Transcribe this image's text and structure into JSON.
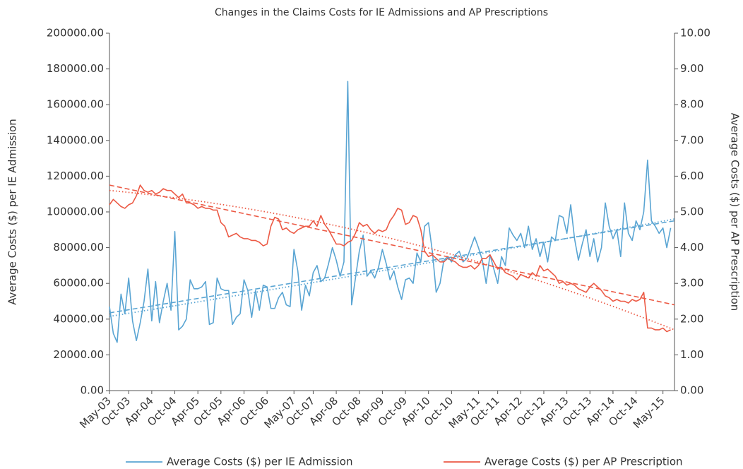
{
  "chart_data": {
    "type": "line",
    "title": "Changes in the Claims Costs for IE Admissions and AP Prescriptions",
    "ylabel": "Average Costs ($) per IE Admission",
    "y2label": "Average Costs ($) per AP Prescription",
    "categories": [
      "May-03",
      null,
      null,
      null,
      null,
      "Oct-03",
      null,
      null,
      null,
      null,
      null,
      "Apr-04",
      null,
      null,
      null,
      null,
      null,
      "Oct-04",
      null,
      null,
      null,
      null,
      null,
      "Apr-05",
      null,
      null,
      null,
      null,
      null,
      "Oct-05",
      null,
      null,
      null,
      null,
      null,
      "Apr-06",
      null,
      null,
      null,
      null,
      null,
      "Oct-06",
      null,
      null,
      null,
      null,
      null,
      null,
      "May-07",
      null,
      null,
      null,
      null,
      "Oct-07",
      null,
      null,
      null,
      null,
      null,
      "Apr-08",
      null,
      null,
      null,
      null,
      null,
      "Oct-08",
      null,
      null,
      null,
      null,
      null,
      "Apr-09",
      null,
      null,
      null,
      null,
      null,
      "Oct-09",
      null,
      null,
      null,
      null,
      null,
      "Apr-10",
      null,
      null,
      null,
      null,
      null,
      "Oct-10",
      null,
      null,
      null,
      null,
      null,
      null,
      "May-11",
      null,
      null,
      null,
      null,
      "Oct-11",
      null,
      null,
      null,
      null,
      null,
      "Apr-12",
      null,
      null,
      null,
      null,
      null,
      "Oct-12",
      null,
      null,
      null,
      null,
      null,
      "Apr-13",
      null,
      null,
      null,
      null,
      null,
      "Oct-13",
      null,
      null,
      null,
      null,
      null,
      "Apr-14",
      null,
      null,
      null,
      null,
      null,
      "Oct-14",
      null,
      null,
      null,
      null,
      null,
      null,
      "May-15",
      null,
      null
    ],
    "series": [
      {
        "name": "Average Costs ($) per IE Admission",
        "color": "#5aa5d3",
        "axis": "y",
        "values": [
          47000,
          32000,
          27000,
          54000,
          43000,
          63000,
          39000,
          28000,
          38000,
          50000,
          68000,
          39000,
          61000,
          38000,
          50000,
          60000,
          45000,
          89000,
          34000,
          36000,
          40000,
          62000,
          57000,
          57000,
          58000,
          61000,
          37000,
          38000,
          63000,
          57000,
          56000,
          56000,
          37000,
          41000,
          43000,
          62000,
          56000,
          41000,
          56000,
          45000,
          59000,
          58000,
          46000,
          46000,
          52000,
          55000,
          48000,
          47000,
          79000,
          67000,
          45000,
          59000,
          53000,
          66000,
          70000,
          61000,
          63000,
          71000,
          80000,
          73000,
          64000,
          72000,
          173000,
          48000,
          63000,
          78000,
          87000,
          64000,
          67000,
          63000,
          69000,
          79000,
          71000,
          62000,
          67000,
          58000,
          51000,
          62000,
          63000,
          60000,
          77000,
          72000,
          92000,
          94000,
          78000,
          55000,
          60000,
          73000,
          75000,
          72000,
          76000,
          78000,
          72000,
          74000,
          80000,
          86000,
          80000,
          73000,
          60000,
          76000,
          68000,
          60000,
          75000,
          70000,
          91000,
          87000,
          84000,
          88000,
          80000,
          92000,
          79000,
          85000,
          75000,
          83000,
          72000,
          86000,
          84000,
          98000,
          97000,
          88000,
          104000,
          85000,
          73000,
          82000,
          90000,
          75000,
          85000,
          72000,
          80000,
          105000,
          92000,
          85000,
          90000,
          75000,
          105000,
          88000,
          84000,
          95000,
          90000,
          100000,
          129000,
          95000,
          92000,
          88000,
          91000,
          80000,
          91000
        ]
      },
      {
        "name": "Average Costs ($) per AP Prescription",
        "color": "#ec5a45",
        "axis": "y2",
        "values": [
          5.2,
          5.35,
          5.25,
          5.15,
          5.1,
          5.2,
          5.25,
          5.45,
          5.75,
          5.6,
          5.55,
          5.6,
          5.5,
          5.55,
          5.65,
          5.6,
          5.6,
          5.5,
          5.4,
          5.5,
          5.25,
          5.25,
          5.2,
          5.1,
          5.15,
          5.1,
          5.1,
          5.05,
          5.05,
          4.7,
          4.6,
          4.3,
          4.35,
          4.4,
          4.3,
          4.25,
          4.25,
          4.2,
          4.2,
          4.15,
          4.05,
          4.1,
          4.6,
          4.85,
          4.8,
          4.5,
          4.55,
          4.45,
          4.4,
          4.5,
          4.55,
          4.6,
          4.6,
          4.75,
          4.6,
          4.9,
          4.65,
          4.5,
          4.3,
          4.1,
          4.1,
          4.05,
          4.15,
          4.2,
          4.4,
          4.7,
          4.6,
          4.65,
          4.5,
          4.4,
          4.5,
          4.45,
          4.5,
          4.75,
          4.9,
          5.1,
          5.05,
          4.65,
          4.7,
          4.9,
          4.85,
          4.5,
          3.9,
          3.75,
          3.8,
          3.7,
          3.6,
          3.6,
          3.7,
          3.65,
          3.6,
          3.5,
          3.45,
          3.45,
          3.5,
          3.4,
          3.5,
          3.7,
          3.7,
          3.8,
          3.6,
          3.4,
          3.45,
          3.3,
          3.25,
          3.2,
          3.1,
          3.25,
          3.2,
          3.15,
          3.3,
          3.2,
          3.5,
          3.35,
          3.4,
          3.3,
          3.2,
          3.0,
          3.05,
          2.95,
          3.0,
          2.95,
          2.85,
          2.8,
          2.75,
          2.9,
          3.0,
          2.9,
          2.8,
          2.65,
          2.6,
          2.5,
          2.55,
          2.5,
          2.5,
          2.45,
          2.55,
          2.5,
          2.55,
          2.75,
          1.75,
          1.75,
          1.7,
          1.7,
          1.75,
          1.65,
          1.7
        ]
      }
    ],
    "trendlines": [
      {
        "series": 0,
        "style": "linear",
        "values": [
          43500,
          95000
        ]
      },
      {
        "series": 0,
        "style": "polynomial",
        "values": [
          41500,
          68000,
          96000
        ]
      },
      {
        "series": 1,
        "style": "linear",
        "values": [
          5.75,
          2.4
        ]
      },
      {
        "series": 1,
        "style": "polynomial",
        "values": [
          5.6,
          4.25,
          1.7
        ]
      }
    ],
    "ylim": [
      0,
      200000
    ],
    "yticks": [
      {
        "value": 0,
        "label": "0.00"
      },
      {
        "value": 20000,
        "label": "20000.00"
      },
      {
        "value": 40000,
        "label": "40000.00"
      },
      {
        "value": 60000,
        "label": "60000.00"
      },
      {
        "value": 80000,
        "label": "80000.00"
      },
      {
        "value": 100000,
        "label": "100000.00"
      },
      {
        "value": 120000,
        "label": "120000.00"
      },
      {
        "value": 140000,
        "label": "140000.00"
      },
      {
        "value": 160000,
        "label": "160000.00"
      },
      {
        "value": 180000,
        "label": "180000.00"
      },
      {
        "value": 200000,
        "label": "200000.00"
      }
    ],
    "y2lim": [
      0,
      10
    ],
    "y2ticks": [
      {
        "value": 0,
        "label": "0.00"
      },
      {
        "value": 1,
        "label": "1.00"
      },
      {
        "value": 2,
        "label": "2.00"
      },
      {
        "value": 3,
        "label": "3.00"
      },
      {
        "value": 4,
        "label": "4.00"
      },
      {
        "value": 5,
        "label": "5.00"
      },
      {
        "value": 6,
        "label": "6.00"
      },
      {
        "value": 7,
        "label": "7.00"
      },
      {
        "value": 8,
        "label": "8.00"
      },
      {
        "value": 9,
        "label": "9.00"
      },
      {
        "value": 10,
        "label": "10.00"
      }
    ],
    "grid": false,
    "legend": "bottom"
  }
}
